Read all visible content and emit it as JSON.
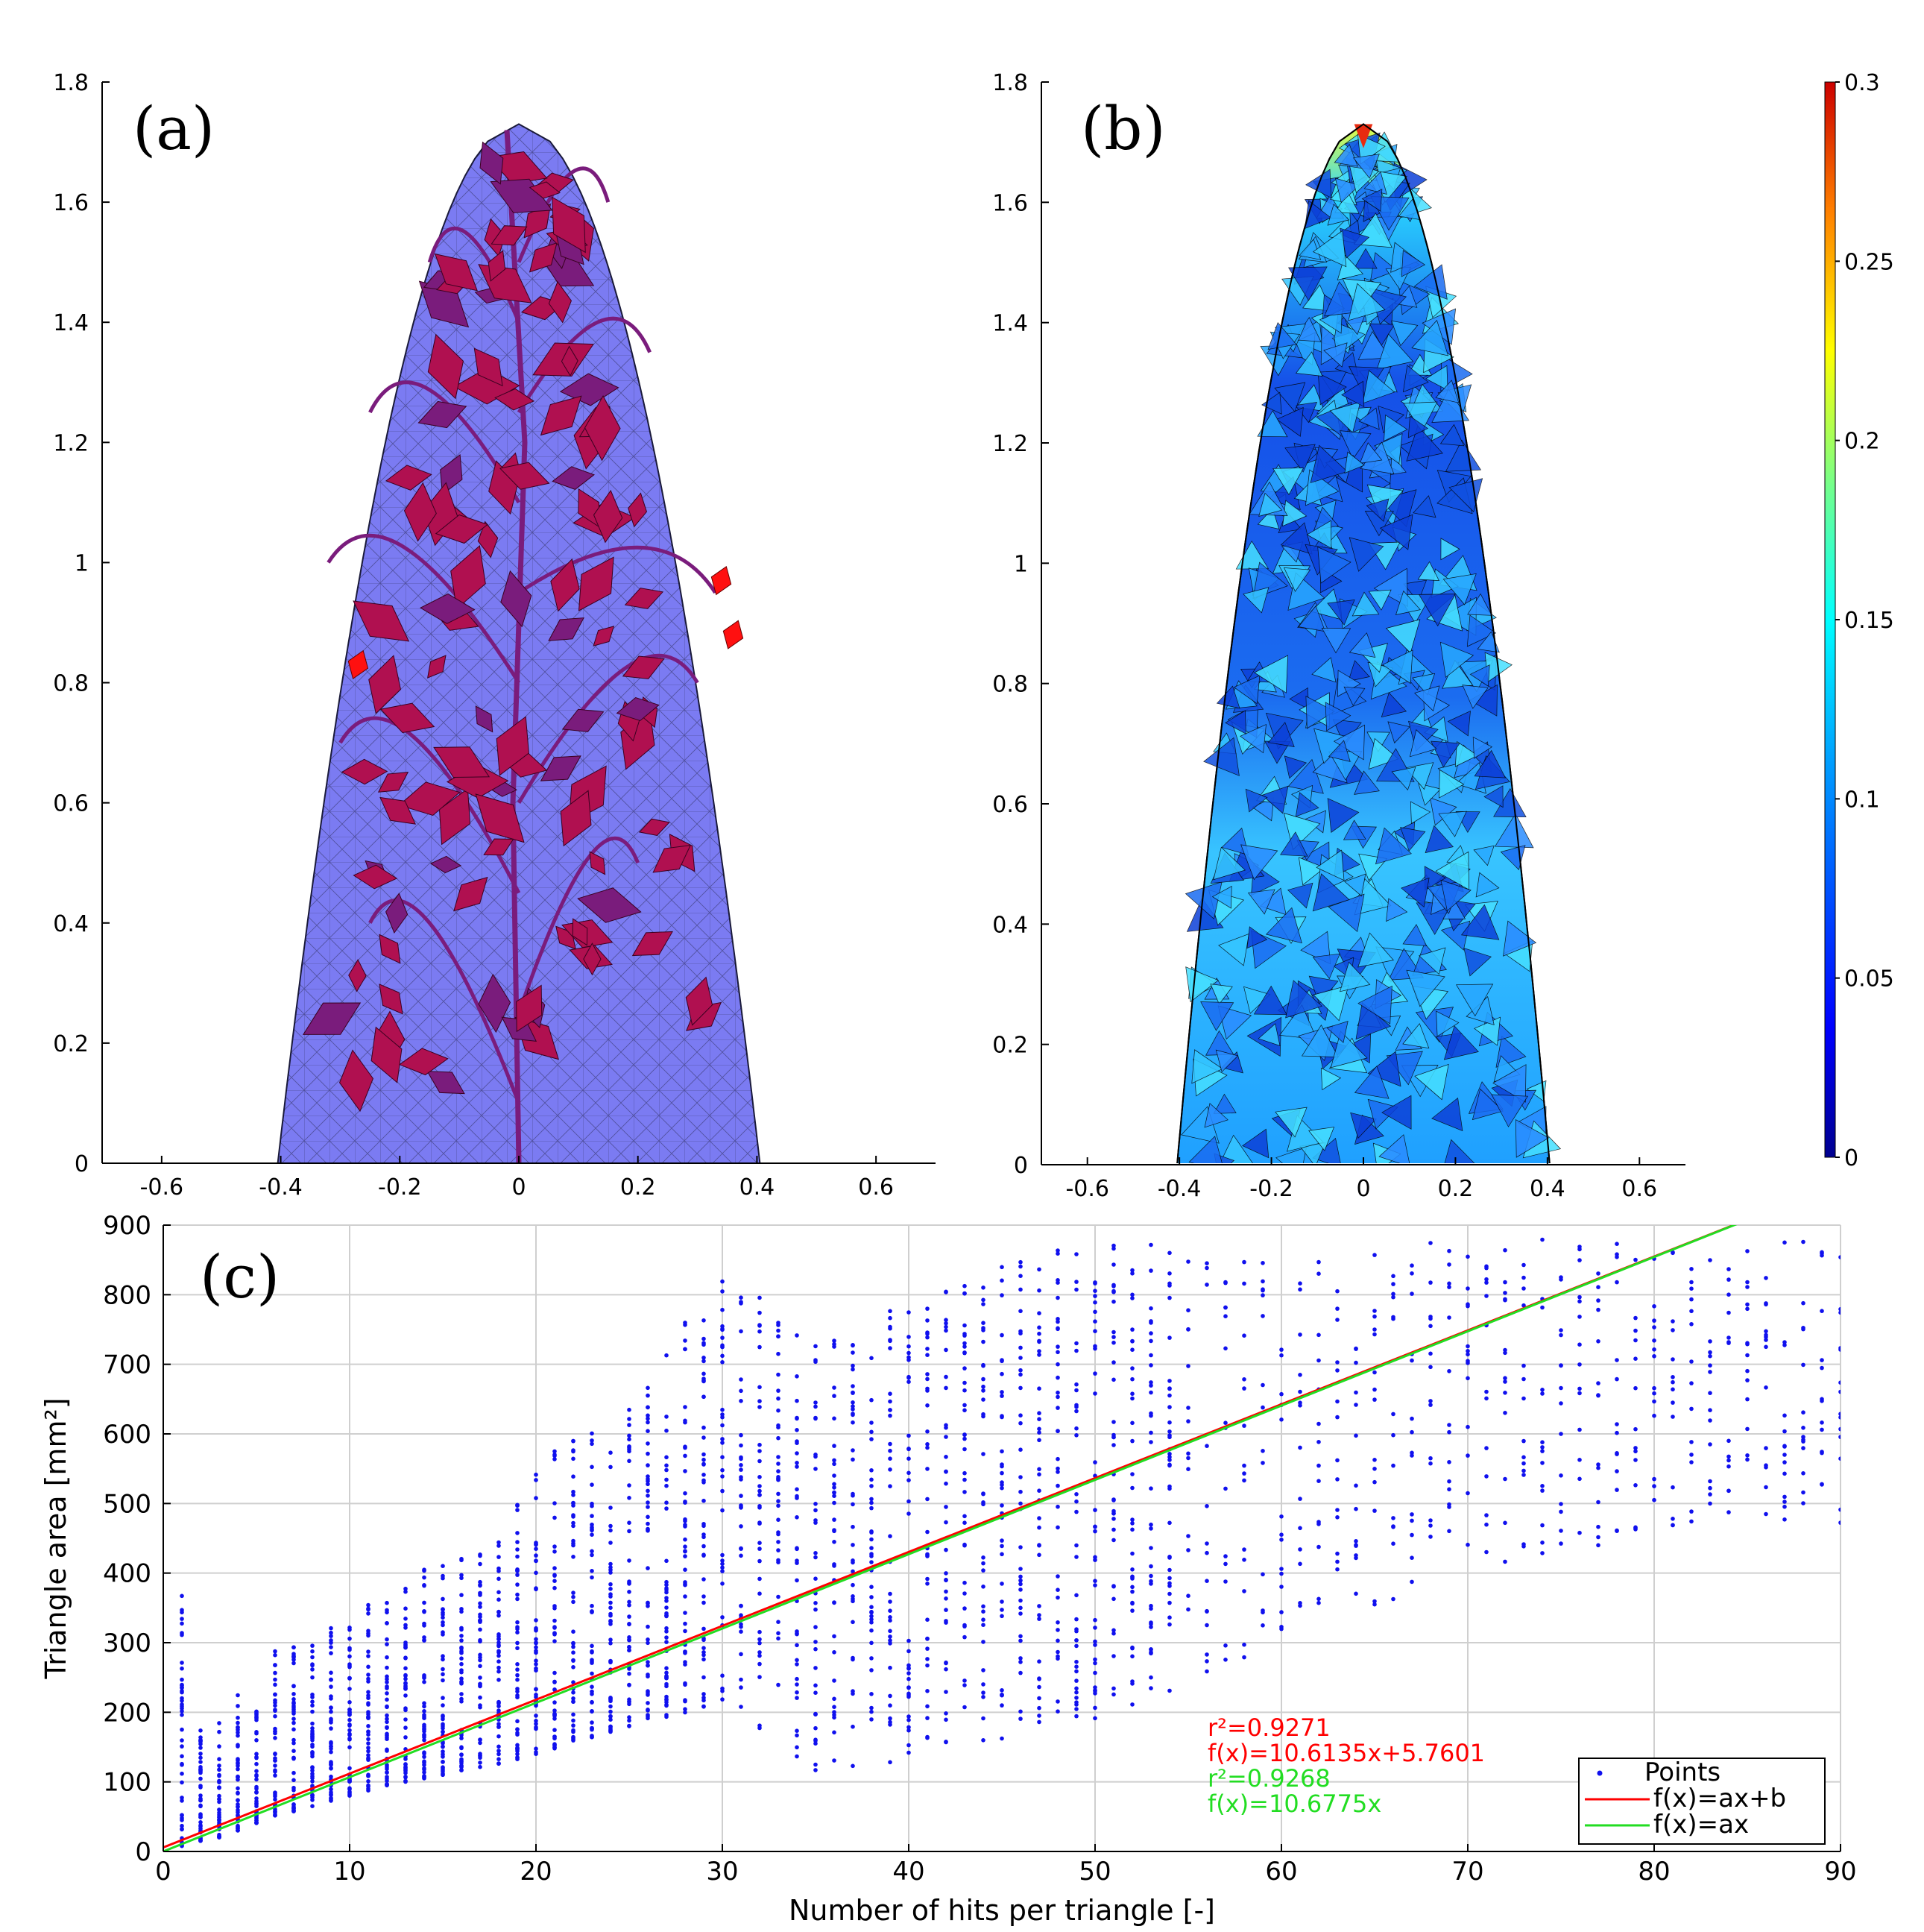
{
  "colors": {
    "points": "#1010ee",
    "fit_ab": "#ff0000",
    "fit_a": "#22dd22",
    "envelope": "#7b7bf2",
    "plant": "#b01050",
    "plant_dark": "#7a1c7c"
  },
  "panel_a": {
    "label": "(a)",
    "xticks": [
      "-0.6",
      "-0.4",
      "-0.2",
      "0",
      "0.2",
      "0.4",
      "0.6"
    ],
    "yticks": [
      "0",
      "0.2",
      "0.4",
      "0.6",
      "0.8",
      "1",
      "1.2",
      "1.4",
      "1.6",
      "1.8"
    ],
    "xlim": [
      -0.7,
      0.7
    ],
    "ylim": [
      0,
      1.8
    ]
  },
  "panel_b": {
    "label": "(b)",
    "xticks": [
      "-0.6",
      "-0.4",
      "-0.2",
      "0",
      "0.2",
      "0.4",
      "0.6"
    ],
    "yticks": [
      "0",
      "0.2",
      "0.4",
      "0.6",
      "0.8",
      "1",
      "1.2",
      "1.4",
      "1.6",
      "1.8"
    ],
    "xlim": [
      -0.7,
      0.7
    ],
    "ylim": [
      0,
      1.8
    ],
    "colorbar": {
      "ticks": [
        "0",
        "0.05",
        "0.1",
        "0.15",
        "0.2",
        "0.25",
        "0.3"
      ],
      "range": [
        0,
        0.3
      ]
    }
  },
  "chart_data": {
    "type": "scatter",
    "label": "(c)",
    "xlabel": "Number of hits per triangle [-]",
    "ylabel": "Triangle area [mm²]",
    "xlim": [
      0,
      90
    ],
    "ylim": [
      0,
      900
    ],
    "xticks": [
      "0",
      "10",
      "20",
      "30",
      "40",
      "50",
      "60",
      "70",
      "80",
      "90"
    ],
    "yticks": [
      "0",
      "100",
      "200",
      "300",
      "400",
      "500",
      "600",
      "700",
      "800",
      "900"
    ],
    "grid": true,
    "series": [
      {
        "name": "Points",
        "kind": "points",
        "note": "vertical bands of points at each integer hit count; min/max area per band",
        "x": [
          1,
          2,
          3,
          4,
          5,
          6,
          8,
          10,
          12,
          15,
          18,
          20,
          25,
          30,
          35,
          40,
          45,
          50,
          55,
          60,
          65,
          70,
          75,
          80,
          85,
          90
        ],
        "y_min": [
          5,
          15,
          20,
          30,
          40,
          50,
          65,
          80,
          95,
          110,
          125,
          140,
          180,
          210,
          110,
          125,
          160,
          190,
          240,
          300,
          350,
          400,
          430,
          450,
          480,
          470
        ],
        "y_max": [
          370,
          175,
          185,
          230,
          210,
          290,
          300,
          360,
          360,
          430,
          450,
          560,
          640,
          850,
          730,
          790,
          840,
          880,
          870,
          880,
          860,
          890,
          880,
          870,
          880,
          880
        ]
      },
      {
        "name": "f(x)=ax+b",
        "kind": "line",
        "a": 10.6135,
        "b": 5.7601
      },
      {
        "name": "f(x)=ax",
        "kind": "line",
        "a": 10.6775,
        "b": 0
      }
    ],
    "annotations": [
      {
        "text": "r²=0.9271",
        "color": "#ff0000"
      },
      {
        "text": "f(x)=10.6135x+5.7601",
        "color": "#ff0000"
      },
      {
        "text": "r²=0.9268",
        "color": "#22dd22"
      },
      {
        "text": "f(x)=10.6775x",
        "color": "#22dd22"
      }
    ],
    "legend": {
      "position": "bottom-right",
      "entries": [
        "Points",
        "f(x)=ax+b",
        "f(x)=ax"
      ]
    }
  }
}
